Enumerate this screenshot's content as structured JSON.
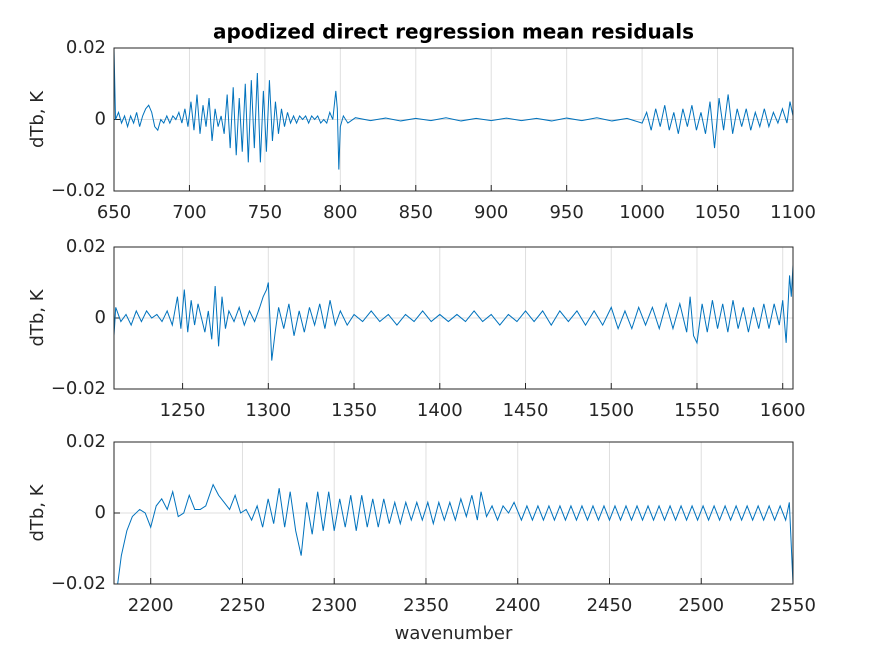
{
  "chart_data": [
    {
      "type": "line",
      "title": "apodized direct regression mean residuals",
      "ylabel": "dTb, K",
      "color": "#0072bd",
      "grid": true,
      "xlim": [
        650,
        1100
      ],
      "xticks": [
        650,
        700,
        750,
        800,
        850,
        900,
        950,
        1000,
        1050,
        1100
      ],
      "ylim": [
        -0.02,
        0.02
      ],
      "yticks": [
        {
          "value": -0.02,
          "label": "−0.02"
        },
        0,
        0.02
      ],
      "x": [
        650,
        651,
        653,
        655,
        657,
        659,
        661,
        663,
        665,
        667,
        669,
        671,
        673,
        675,
        677,
        679,
        681,
        683,
        685,
        687,
        689,
        691,
        693,
        695,
        697,
        699,
        701,
        703,
        705,
        707,
        709,
        711,
        713,
        715,
        717,
        719,
        721,
        723,
        725,
        727,
        729,
        731,
        733,
        735,
        737,
        739,
        741,
        743,
        745,
        747,
        749,
        751,
        753,
        755,
        757,
        759,
        761,
        763,
        765,
        767,
        769,
        771,
        773,
        775,
        777,
        779,
        781,
        783,
        785,
        787,
        789,
        791,
        793,
        795,
        797,
        798,
        799,
        800,
        802,
        805,
        810,
        820,
        830,
        840,
        850,
        860,
        870,
        880,
        890,
        900,
        910,
        920,
        930,
        940,
        950,
        960,
        970,
        980,
        990,
        1000,
        1003,
        1006,
        1009,
        1012,
        1015,
        1018,
        1021,
        1024,
        1027,
        1030,
        1033,
        1036,
        1039,
        1042,
        1045,
        1048,
        1051,
        1054,
        1057,
        1060,
        1063,
        1066,
        1069,
        1072,
        1075,
        1078,
        1081,
        1084,
        1087,
        1090,
        1093,
        1096,
        1098,
        1100
      ],
      "values": [
        0.02,
        0,
        0.002,
        -0.001,
        0.001,
        -0.002,
        0.001,
        -0.001,
        0.002,
        -0.002,
        0.001,
        0.003,
        0.004,
        0.002,
        -0.002,
        -0.003,
        0,
        -0.001,
        0.001,
        -0.001,
        0.001,
        0,
        0.002,
        -0.001,
        0.003,
        -0.002,
        0.005,
        -0.003,
        0.007,
        -0.004,
        0.004,
        -0.002,
        0.006,
        -0.006,
        0.003,
        -0.002,
        0.001,
        -0.004,
        0.007,
        -0.008,
        0.009,
        -0.01,
        0.006,
        -0.009,
        0.01,
        -0.012,
        0.011,
        -0.008,
        0.013,
        -0.012,
        0.008,
        -0.009,
        0.011,
        -0.006,
        0.005,
        -0.004,
        0.003,
        -0.002,
        0.002,
        -0.001,
        0.001,
        -0.001,
        0.001,
        0,
        0.001,
        -0.001,
        0.001,
        0,
        0.001,
        -0.001,
        0,
        -0.001,
        0.002,
        0,
        0.008,
        0.003,
        -0.014,
        -0.002,
        0.001,
        -0.001,
        0.0005,
        -0.0003,
        0.0004,
        -0.0004,
        0.0003,
        -0.0003,
        0.0005,
        -0.0004,
        0.0003,
        -0.0003,
        0.0004,
        -0.0003,
        0.0003,
        -0.0004,
        0.0004,
        -0.0003,
        0.0005,
        -0.0004,
        0.0003,
        -0.001,
        0.002,
        -0.003,
        0.003,
        -0.002,
        0.004,
        -0.003,
        0.002,
        -0.004,
        0.003,
        -0.002,
        0.004,
        -0.003,
        0.002,
        -0.004,
        0.005,
        -0.008,
        0.006,
        -0.003,
        0.007,
        -0.004,
        0.003,
        -0.002,
        0.003,
        -0.003,
        0.002,
        -0.002,
        0.003,
        -0.002,
        0.002,
        -0.001,
        0.003,
        -0.001,
        0.005,
        0.001
      ]
    },
    {
      "type": "line",
      "ylabel": "dTb, K",
      "color": "#0072bd",
      "grid": true,
      "xlim": [
        1210,
        1606
      ],
      "xticks": [
        1250,
        1300,
        1350,
        1400,
        1450,
        1500,
        1550,
        1600
      ],
      "ylim": [
        -0.02,
        0.02
      ],
      "yticks": [
        {
          "value": -0.02,
          "label": "−0.02"
        },
        0,
        0.02
      ],
      "x": [
        1210,
        1211,
        1214,
        1217,
        1220,
        1223,
        1226,
        1229,
        1232,
        1235,
        1238,
        1241,
        1244,
        1247,
        1249,
        1251,
        1253,
        1255,
        1257,
        1259,
        1261,
        1263,
        1265,
        1267,
        1269,
        1271,
        1273,
        1275,
        1277,
        1280,
        1283,
        1286,
        1289,
        1292,
        1295,
        1297,
        1299,
        1300,
        1302,
        1304,
        1306,
        1309,
        1312,
        1315,
        1318,
        1321,
        1324,
        1327,
        1330,
        1333,
        1336,
        1339,
        1342,
        1346,
        1350,
        1355,
        1360,
        1365,
        1370,
        1375,
        1380,
        1385,
        1390,
        1395,
        1400,
        1405,
        1410,
        1415,
        1420,
        1425,
        1430,
        1435,
        1440,
        1445,
        1450,
        1455,
        1460,
        1465,
        1470,
        1475,
        1480,
        1485,
        1490,
        1495,
        1500,
        1504,
        1508,
        1512,
        1516,
        1520,
        1524,
        1528,
        1532,
        1536,
        1540,
        1544,
        1546,
        1548,
        1550,
        1553,
        1556,
        1559,
        1562,
        1565,
        1568,
        1571,
        1574,
        1577,
        1580,
        1583,
        1586,
        1589,
        1592,
        1595,
        1598,
        1600,
        1602,
        1604,
        1605,
        1606
      ],
      "values": [
        -0.005,
        0.003,
        -0.001,
        0.001,
        -0.002,
        0.002,
        -0.001,
        0.002,
        0,
        0.001,
        -0.001,
        0.002,
        -0.002,
        0.006,
        -0.003,
        0.008,
        -0.004,
        0.005,
        -0.002,
        0.004,
        0,
        -0.004,
        0.002,
        -0.006,
        0.009,
        -0.008,
        0.006,
        -0.003,
        0.002,
        -0.001,
        0.003,
        -0.002,
        0.002,
        -0.001,
        0.003,
        0.006,
        0.008,
        0.01,
        -0.012,
        -0.004,
        0.003,
        -0.003,
        0.004,
        -0.005,
        0.002,
        -0.004,
        0.003,
        -0.002,
        0.004,
        -0.003,
        0.005,
        -0.002,
        0.002,
        -0.002,
        0.001,
        -0.001,
        0.002,
        -0.001,
        0.001,
        -0.002,
        0.001,
        -0.001,
        0.002,
        -0.001,
        0.001,
        -0.001,
        0.001,
        -0.001,
        0.002,
        -0.001,
        0.001,
        -0.002,
        0.001,
        -0.001,
        0.002,
        -0.001,
        0.002,
        -0.002,
        0.002,
        -0.001,
        0.002,
        -0.002,
        0.002,
        -0.002,
        0.003,
        -0.003,
        0.002,
        -0.003,
        0.003,
        -0.002,
        0.003,
        -0.003,
        0.004,
        -0.003,
        0.004,
        -0.004,
        0.006,
        -0.005,
        -0.007,
        0.004,
        -0.004,
        0.005,
        -0.003,
        0.004,
        -0.004,
        0.005,
        -0.003,
        0.003,
        -0.004,
        0.003,
        -0.003,
        0.004,
        -0.003,
        0.004,
        -0.002,
        0.005,
        -0.007,
        0.012,
        0.006,
        0.015
      ]
    },
    {
      "type": "line",
      "ylabel": "dTb, K",
      "xlabel": "wavenumber",
      "color": "#0072bd",
      "grid": true,
      "xlim": [
        2180,
        2550
      ],
      "xticks": [
        2200,
        2250,
        2300,
        2350,
        2400,
        2450,
        2500,
        2550
      ],
      "ylim": [
        -0.02,
        0.02
      ],
      "yticks": [
        {
          "value": -0.02,
          "label": "−0.02"
        },
        0,
        0.02
      ],
      "x": [
        2182,
        2184,
        2187,
        2190,
        2194,
        2197,
        2200,
        2203,
        2206,
        2209,
        2212,
        2215,
        2218,
        2221,
        2224,
        2227,
        2230,
        2234,
        2237,
        2240,
        2243,
        2246,
        2249,
        2252,
        2255,
        2258,
        2261,
        2264,
        2267,
        2270,
        2273,
        2276,
        2279,
        2282,
        2285,
        2288,
        2291,
        2294,
        2297,
        2300,
        2303,
        2306,
        2309,
        2312,
        2315,
        2318,
        2321,
        2324,
        2327,
        2330,
        2333,
        2336,
        2339,
        2342,
        2345,
        2348,
        2351,
        2354,
        2357,
        2360,
        2363,
        2366,
        2369,
        2372,
        2375,
        2378,
        2380,
        2383,
        2386,
        2389,
        2392,
        2395,
        2398,
        2402,
        2405,
        2408,
        2411,
        2414,
        2417,
        2420,
        2423,
        2426,
        2429,
        2432,
        2435,
        2438,
        2441,
        2444,
        2447,
        2450,
        2453,
        2456,
        2459,
        2462,
        2465,
        2468,
        2471,
        2474,
        2477,
        2480,
        2483,
        2486,
        2489,
        2492,
        2495,
        2498,
        2501,
        2504,
        2507,
        2510,
        2513,
        2516,
        2519,
        2522,
        2525,
        2528,
        2531,
        2534,
        2537,
        2540,
        2543,
        2546,
        2548,
        2550
      ],
      "values": [
        -0.02,
        -0.012,
        -0.005,
        -0.001,
        0.001,
        0,
        -0.004,
        0.002,
        0.004,
        0.001,
        0.006,
        -0.001,
        0,
        0.005,
        0.001,
        0.001,
        0.002,
        0.008,
        0.005,
        0.003,
        0.001,
        0.005,
        0,
        0.001,
        -0.002,
        0.002,
        -0.004,
        0.004,
        -0.003,
        0.007,
        -0.004,
        0.006,
        -0.005,
        -0.012,
        0.003,
        -0.006,
        0.006,
        -0.005,
        0.006,
        -0.005,
        0.004,
        -0.004,
        0.005,
        -0.005,
        0.005,
        -0.004,
        0.004,
        -0.004,
        0.004,
        -0.003,
        0.003,
        -0.003,
        0.003,
        -0.002,
        0.003,
        -0.002,
        0.003,
        -0.003,
        0.003,
        -0.002,
        0.003,
        -0.002,
        0.004,
        -0.001,
        0.005,
        -0.002,
        0.006,
        -0.001,
        0.002,
        -0.002,
        0.002,
        0,
        0.003,
        -0.002,
        0.002,
        -0.002,
        0.002,
        -0.002,
        0.002,
        -0.002,
        0.002,
        -0.002,
        0.002,
        -0.002,
        0.002,
        -0.002,
        0.002,
        -0.002,
        0.002,
        -0.002,
        0.002,
        -0.002,
        0.002,
        -0.002,
        0.002,
        -0.002,
        0.002,
        -0.002,
        0.002,
        -0.002,
        0.002,
        -0.002,
        0.002,
        -0.002,
        0.002,
        -0.002,
        0.002,
        -0.002,
        0.002,
        -0.002,
        0.002,
        -0.002,
        0.002,
        -0.002,
        0.002,
        -0.002,
        0.002,
        -0.002,
        0.002,
        -0.002,
        0.002,
        -0.002,
        0.003,
        -0.02
      ]
    }
  ]
}
